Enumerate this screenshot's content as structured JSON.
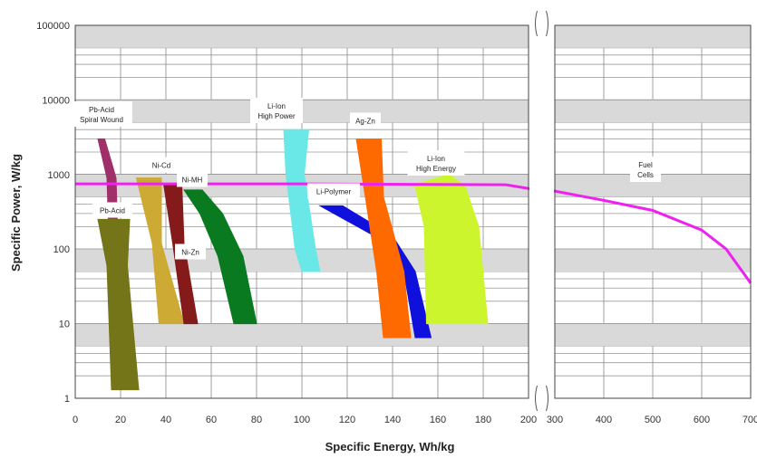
{
  "chart_data": {
    "type": "area",
    "xlabel": "Specific Energy, Wh/kg",
    "ylabel": "Specific Power, W/kg",
    "y_scale": "log",
    "ylim": [
      1,
      100000
    ],
    "grid": true,
    "panels": [
      {
        "xlim": [
          0,
          200
        ],
        "xticks": [
          0,
          20,
          40,
          60,
          80,
          100,
          120,
          140,
          160,
          180,
          200
        ]
      },
      {
        "xlim": [
          300,
          700
        ],
        "xticks": [
          300,
          400,
          500,
          600,
          700
        ]
      }
    ],
    "y_tick_labels": [
      "1",
      "10",
      "100",
      "1000",
      "10000",
      "100000"
    ],
    "series": [
      {
        "name": "Pb-Acid Spiral Wound",
        "label_lines": [
          "Pb-Acid",
          "Spiral Wound"
        ],
        "color": "#a0306a",
        "region": [
          [
            10,
            3000
          ],
          [
            13,
            3000
          ],
          [
            18,
            900
          ],
          [
            19,
            90
          ],
          [
            15,
            90
          ],
          [
            14,
            900
          ]
        ]
      },
      {
        "name": "Pb-Acid",
        "label_lines": [
          "Pb-Acid"
        ],
        "color": "#747418",
        "region": [
          [
            10,
            250
          ],
          [
            24,
            250
          ],
          [
            23,
            60
          ],
          [
            28,
            1.3
          ],
          [
            16,
            1.3
          ],
          [
            14,
            60
          ]
        ]
      },
      {
        "name": "Ni-Cd",
        "label_lines": [
          "Ni-Cd"
        ],
        "color": "#ccaa33",
        "region": [
          [
            27,
            900
          ],
          [
            38,
            900
          ],
          [
            38,
            120
          ],
          [
            48,
            10
          ],
          [
            37,
            10
          ],
          [
            34,
            120
          ]
        ]
      },
      {
        "name": "Ni-Zn",
        "label_lines": [
          "Ni-Zn"
        ],
        "color": "#851a1a",
        "region": [
          [
            39,
            750
          ],
          [
            47,
            750
          ],
          [
            48,
            120
          ],
          [
            54,
            10
          ],
          [
            48,
            10
          ],
          [
            43,
            120
          ]
        ]
      },
      {
        "name": "Ni-MH",
        "label_lines": [
          "Ni-MH"
        ],
        "color": "#0a7a20",
        "region": [
          [
            48,
            620
          ],
          [
            56,
            620
          ],
          [
            65,
            300
          ],
          [
            74,
            80
          ],
          [
            80,
            10
          ],
          [
            70,
            10
          ],
          [
            63,
            80
          ],
          [
            55,
            300
          ]
        ]
      },
      {
        "name": "Li-Ion High Power",
        "label_lines": [
          "Li-Ion",
          "High Power"
        ],
        "color": "#6ae8e8",
        "region": [
          [
            92,
            4000
          ],
          [
            103,
            4000
          ],
          [
            101,
            1000
          ],
          [
            106,
            100
          ],
          [
            108,
            50
          ],
          [
            100,
            50
          ],
          [
            97,
            100
          ],
          [
            93,
            1000
          ]
        ]
      },
      {
        "name": "Li-Polymer",
        "label_lines": [
          "Li-Polymer"
        ],
        "color": "#1010dd",
        "region": [
          [
            108,
            380
          ],
          [
            118,
            380
          ],
          [
            140,
            150
          ],
          [
            150,
            50
          ],
          [
            157,
            6.5
          ],
          [
            150,
            6.5
          ],
          [
            145,
            50
          ],
          [
            132,
            150
          ]
        ]
      },
      {
        "name": "Ag-Zn",
        "label_lines": [
          "Ag-Zn"
        ],
        "color": "#ff6a00",
        "region": [
          [
            124,
            3000
          ],
          [
            135,
            3000
          ],
          [
            136,
            500
          ],
          [
            145,
            50
          ],
          [
            148,
            6.5
          ],
          [
            136,
            6.5
          ],
          [
            133,
            50
          ],
          [
            128,
            500
          ]
        ]
      },
      {
        "name": "Li-Ion High Energy",
        "label_lines": [
          "Li-Ion",
          "High Energy"
        ],
        "color": "#ccf52e",
        "region": [
          [
            147,
            700
          ],
          [
            165,
            1000
          ],
          [
            172,
            700
          ],
          [
            178,
            200
          ],
          [
            182,
            10
          ],
          [
            155,
            10
          ],
          [
            154,
            200
          ],
          [
            150,
            700
          ]
        ]
      },
      {
        "name": "Fuel Cells",
        "label_lines": [
          "Fuel",
          "Cells"
        ],
        "color": "#ee22ee",
        "line": [
          [
            0,
            750
          ],
          [
            100,
            750
          ],
          [
            190,
            730
          ],
          [
            200,
            650
          ],
          [
            300,
            600
          ],
          [
            400,
            450
          ],
          [
            500,
            330
          ],
          [
            600,
            180
          ],
          [
            650,
            100
          ],
          [
            700,
            35
          ]
        ]
      }
    ]
  }
}
